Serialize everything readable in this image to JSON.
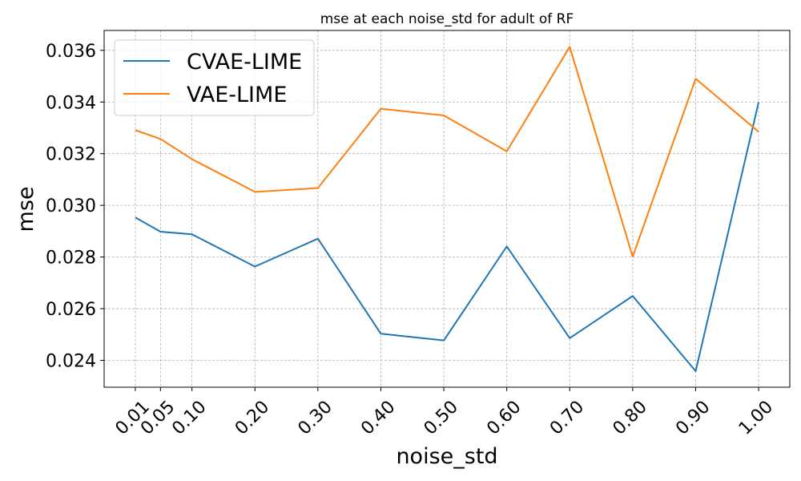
{
  "chart_data": {
    "type": "line",
    "title": "mse at each noise_std for adult of RF",
    "xlabel": "noise_std",
    "ylabel": "mse",
    "x": [
      0.01,
      0.05,
      0.1,
      0.2,
      0.3,
      0.4,
      0.5,
      0.6,
      0.7,
      0.8,
      0.9,
      1.0
    ],
    "x_tick_labels": [
      "0.01",
      "0.05",
      "0.10",
      "0.20",
      "0.30",
      "0.40",
      "0.50",
      "0.60",
      "0.70",
      "0.80",
      "0.90",
      "1.00"
    ],
    "y_ticks": [
      0.024,
      0.026,
      0.028,
      0.03,
      0.032,
      0.034,
      0.036
    ],
    "y_tick_labels": [
      "0.024",
      "0.026",
      "0.028",
      "0.030",
      "0.032",
      "0.034",
      "0.036"
    ],
    "xlim": [
      -0.0395,
      1.0495
    ],
    "ylim": [
      0.02296,
      0.03677
    ],
    "grid": true,
    "legend_position": "top-left",
    "series": [
      {
        "name": "CVAE-LIME",
        "color": "#1f77b4",
        "values": [
          0.02953,
          0.02898,
          0.02888,
          0.02763,
          0.02871,
          0.02503,
          0.02477,
          0.02841,
          0.02486,
          0.02649,
          0.02358,
          0.03399
        ]
      },
      {
        "name": "VAE-LIME",
        "color": "#ff7f0e",
        "values": [
          0.03291,
          0.03257,
          0.03179,
          0.03052,
          0.03067,
          0.03374,
          0.03348,
          0.03209,
          0.03614,
          0.02801,
          0.0349,
          0.03285
        ]
      }
    ]
  }
}
